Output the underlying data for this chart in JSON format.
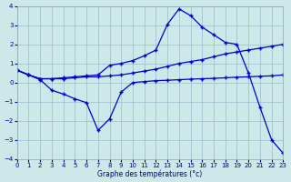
{
  "xlabel": "Graphe des températures (°c)",
  "bg_color": "#cce8e8",
  "line_color": "#0000cc",
  "grid_color": "#99bbcc",
  "xlim": [
    0,
    23
  ],
  "ylim": [
    -4,
    4
  ],
  "yticks": [
    -4,
    -3,
    -2,
    -1,
    0,
    1,
    2,
    3,
    4
  ],
  "xticks": [
    0,
    1,
    2,
    3,
    4,
    5,
    6,
    7,
    8,
    9,
    10,
    11,
    12,
    13,
    14,
    15,
    16,
    17,
    18,
    19,
    20,
    21,
    22,
    23
  ],
  "curve1_x": [
    0,
    1,
    2,
    3,
    4,
    5,
    6,
    7,
    8,
    9,
    10,
    11,
    12,
    13,
    14,
    15,
    16,
    17,
    18,
    19,
    20,
    21,
    22,
    23
  ],
  "curve1_y": [
    0.65,
    0.4,
    0.2,
    0.2,
    0.25,
    0.3,
    0.35,
    0.4,
    0.9,
    1.0,
    1.15,
    1.4,
    1.7,
    3.05,
    3.85,
    3.5,
    2.9,
    2.5,
    2.1,
    2.0,
    0.5,
    -1.3,
    -3.0,
    -3.7
  ],
  "curve2_x": [
    0,
    1,
    2,
    3,
    4,
    5,
    6,
    7,
    8,
    9,
    10,
    11,
    12,
    13,
    14,
    15,
    16,
    17,
    18,
    19,
    20,
    21,
    22,
    23
  ],
  "curve2_y": [
    0.65,
    0.4,
    0.2,
    0.2,
    0.2,
    0.25,
    0.3,
    0.3,
    0.35,
    0.4,
    0.5,
    0.6,
    0.7,
    0.85,
    1.0,
    1.1,
    1.2,
    1.35,
    1.5,
    1.6,
    1.7,
    1.8,
    1.9,
    2.0
  ],
  "curve3_x": [
    0,
    1,
    2,
    3,
    4,
    5,
    6,
    7,
    8,
    9,
    10,
    11,
    12,
    13,
    14,
    15,
    16,
    17,
    18,
    19,
    20,
    21,
    22,
    23
  ],
  "curve3_y": [
    0.65,
    0.4,
    0.15,
    -0.4,
    -0.6,
    -0.85,
    -1.05,
    -2.5,
    -1.9,
    -0.5,
    0.0,
    0.05,
    0.1,
    0.12,
    0.15,
    0.18,
    0.2,
    0.22,
    0.25,
    0.28,
    0.3,
    0.33,
    0.35,
    0.4
  ]
}
